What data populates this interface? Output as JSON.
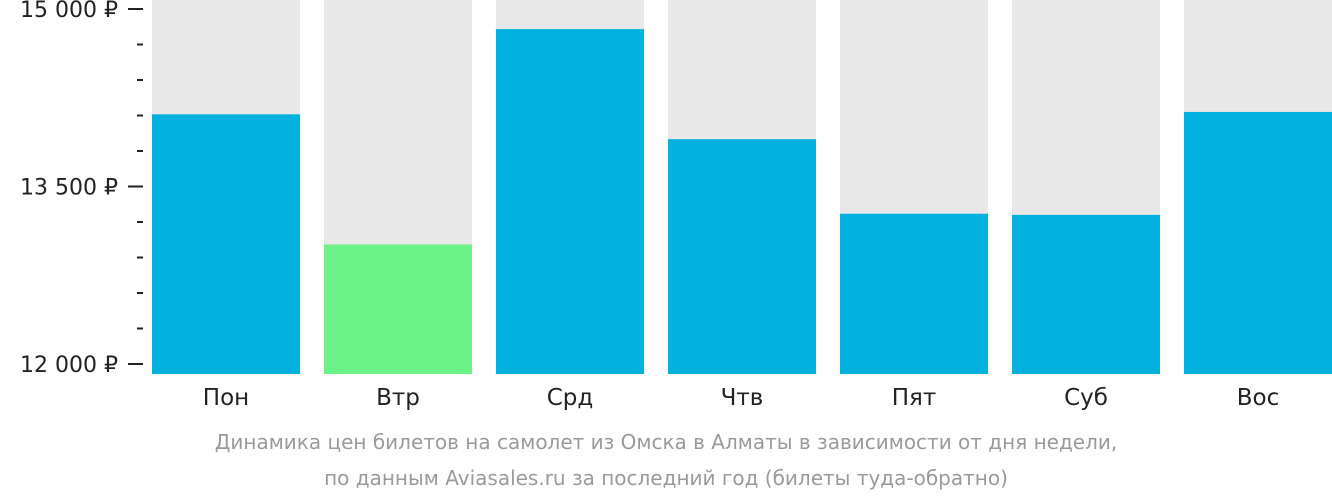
{
  "chart_data": {
    "type": "bar",
    "categories": [
      "Пон",
      "Втр",
      "Срд",
      "Чтв",
      "Пят",
      "Суб",
      "Вос"
    ],
    "values": [
      14110,
      13010,
      14830,
      13900,
      13270,
      13260,
      14130
    ],
    "highlight_index": 1,
    "ylim": [
      12000,
      15000
    ],
    "y_ticks": [
      {
        "value": 15000,
        "label": "15 000 ₽"
      },
      {
        "value": 13500,
        "label": "13 500 ₽"
      },
      {
        "value": 12000,
        "label": "12 000 ₽"
      }
    ],
    "minor_tick_step": 300,
    "colors": {
      "bar": "#02b1dd",
      "bar_highlight": "#6cf387",
      "background_bar": "#e8e8e8",
      "axis_text": "#222222",
      "caption": "#9a9a9a"
    }
  },
  "caption": {
    "line1": "Динамика цен билетов на самолет из Омска в Алматы в зависимости от дня недели,",
    "line2": "по данным Aviasales.ru за последний год (билеты туда-обратно)"
  }
}
